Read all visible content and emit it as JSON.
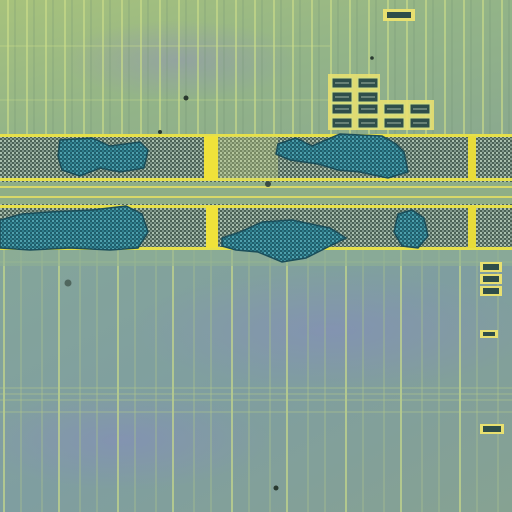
{
  "image": {
    "description_kind": "microscope-die-photo",
    "palette": {
      "upper_field": "#9dbb7c",
      "upper_field_alt": "#86a98a",
      "lower_field": "#7f9f98",
      "lower_field_alt": "#8aa0a6",
      "trace_light": "#cfe08a",
      "trace_yellow": "#e6e04a",
      "bus_dark": "#3d4f46",
      "bus_mesh": "#9fb4a4",
      "pad_yellow": "#f0e23a",
      "blob_fill": "#2e7c8a",
      "blob_edge": "#1b4e5a",
      "pad_frame": "#e8e070",
      "pad_inner": "#2f4e4a",
      "speck": "#2a3a30"
    }
  }
}
